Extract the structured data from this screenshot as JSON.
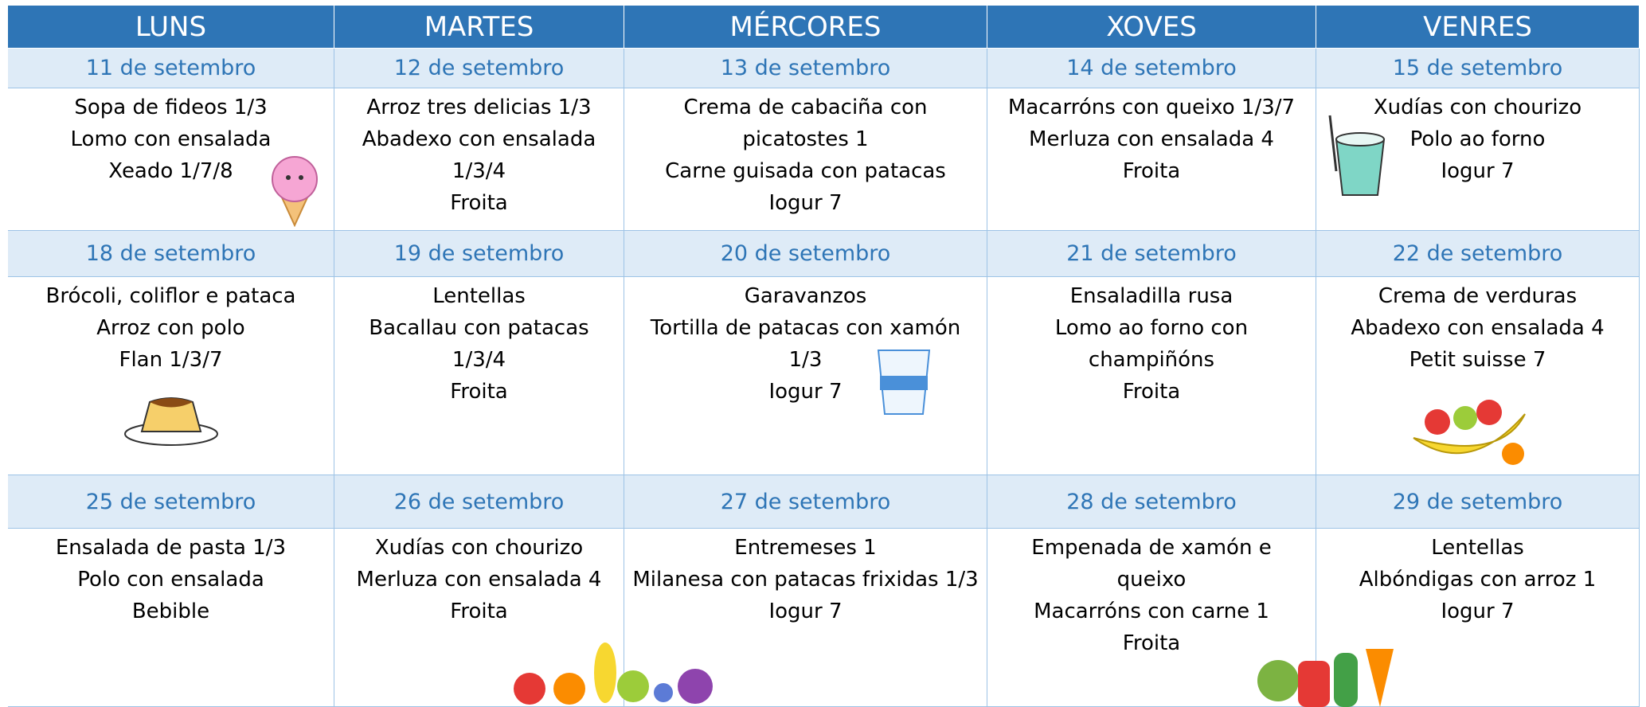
{
  "days": [
    "LUNS",
    "MARTES",
    "MÉRCORES",
    "XOVES",
    "VENRES"
  ],
  "weeks": [
    {
      "dates": [
        "11 de setembro",
        "12 de setembro",
        "13 de setembro",
        "14 de setembro",
        "15 de setembro"
      ],
      "menus": [
        [
          "Sopa de fideos 1/3",
          "Lomo con ensalada",
          "Xeado 1/7/8"
        ],
        [
          "Arroz tres delicias 1/3",
          "Abadexo con ensalada 1/3/4",
          "Froita"
        ],
        [
          "Crema de cabaciña con picatostes 1",
          "Carne guisada con patacas",
          "Iogur 7"
        ],
        [
          "Macarróns con queixo 1/3/7",
          "Merluza con ensalada 4",
          "Froita"
        ],
        [
          "Xudías con chourizo",
          "Polo ao forno",
          "Iogur 7"
        ]
      ]
    },
    {
      "dates": [
        "18 de setembro",
        "19 de setembro",
        "20 de setembro",
        "21 de setembro",
        "22 de setembro"
      ],
      "menus": [
        [
          "Brócoli, coliflor e pataca",
          "Arroz con polo",
          "Flan 1/3/7"
        ],
        [
          "Lentellas",
          "Bacallau con patacas 1/3/4",
          "Froita"
        ],
        [
          "Garavanzos",
          "Tortilla de patacas con xamón 1/3",
          "Iogur 7"
        ],
        [
          "Ensaladilla rusa",
          "Lomo ao forno con champiñóns",
          "Froita"
        ],
        [
          "Crema de verduras",
          "Abadexo con ensalada 4",
          "Petit suisse 7"
        ]
      ]
    },
    {
      "dates": [
        "25 de setembro",
        "26 de setembro",
        "27 de setembro",
        "28 de setembro",
        "29 de setembro"
      ],
      "menus": [
        [
          "Ensalada de pasta 1/3",
          "Polo con ensalada",
          "Bebible"
        ],
        [
          "Xudías con chourizo",
          "Merluza con ensalada 4",
          "Froita"
        ],
        [
          "Entremeses 1",
          "Milanesa con patacas frixidas 1/3",
          "Iogur 7"
        ],
        [
          "Empenada de xamón e queixo",
          "Macarróns con carne 1",
          "Froita"
        ],
        [
          "Lentellas",
          "Albóndigas con arroz 1",
          "Iogur 7"
        ]
      ]
    }
  ]
}
